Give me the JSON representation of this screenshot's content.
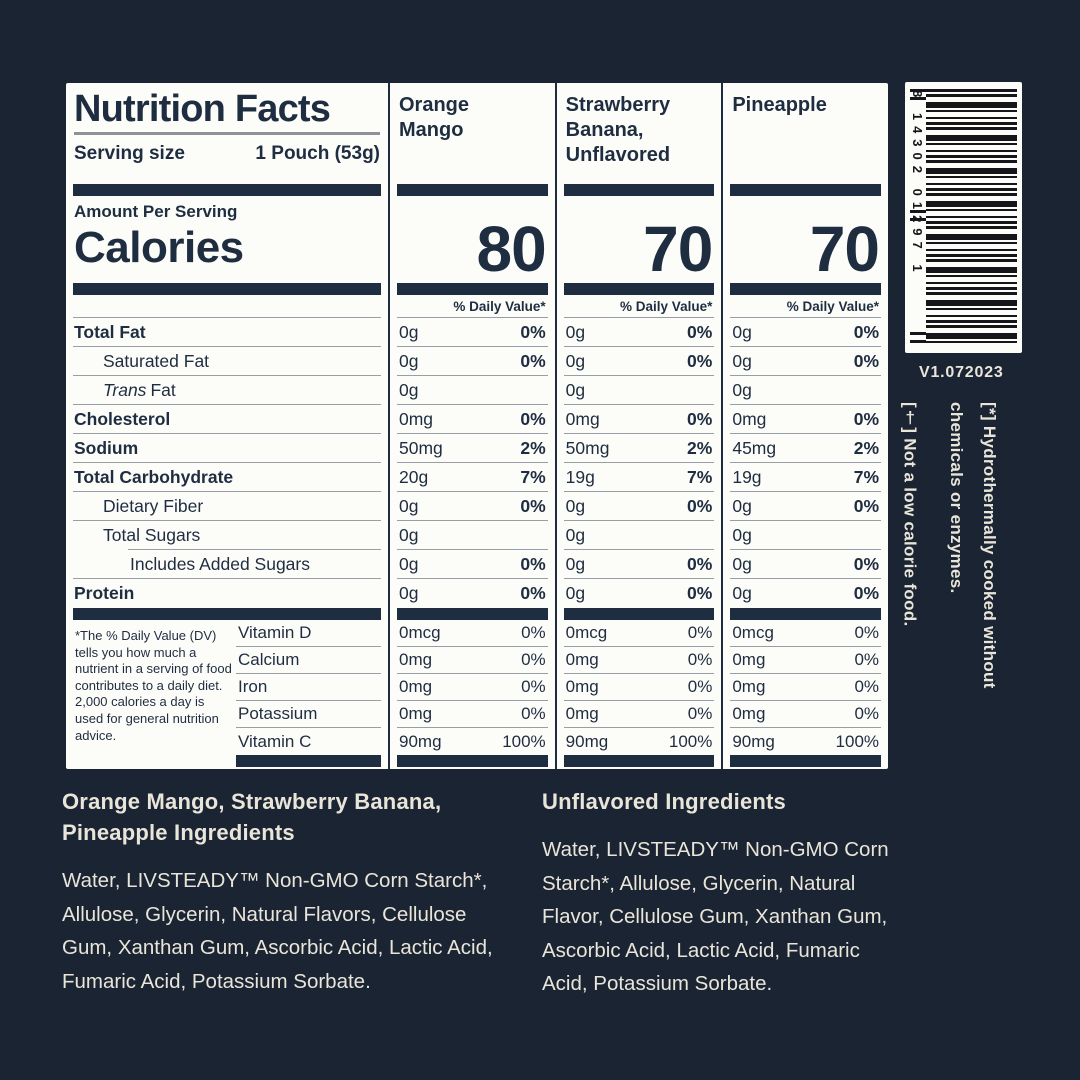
{
  "panel": {
    "title": "Nutrition Facts",
    "serving_size_label": "Serving size",
    "serving_size_value": "1 Pouch (53g)",
    "amount_per_serving": "Amount Per Serving",
    "calories_word": "Calories",
    "daily_value_header": "% Daily Value*",
    "columns": [
      {
        "name": "Orange Mango",
        "calories": "80"
      },
      {
        "name": "Strawberry Banana, Unflavored",
        "calories": "70"
      },
      {
        "name": "Pineapple",
        "calories": "70"
      }
    ],
    "nutrients": [
      {
        "label": "Total Fat",
        "values": [
          "0g",
          "0g",
          "0g"
        ],
        "dv": [
          "0%",
          "0%",
          "0%"
        ]
      },
      {
        "label": "Saturated Fat",
        "values": [
          "0g",
          "0g",
          "0g"
        ],
        "dv": [
          "0%",
          "0%",
          "0%"
        ]
      },
      {
        "label_italic": "Trans",
        "label": "Fat",
        "values": [
          "0g",
          "0g",
          "0g"
        ],
        "dv": [
          "",
          "",
          ""
        ]
      },
      {
        "label": "Cholesterol",
        "values": [
          "0mg",
          "0mg",
          "0mg"
        ],
        "dv": [
          "0%",
          "0%",
          "0%"
        ]
      },
      {
        "label": "Sodium",
        "values": [
          "50mg",
          "50mg",
          "45mg"
        ],
        "dv": [
          "2%",
          "2%",
          "2%"
        ]
      },
      {
        "label": "Total Carbohydrate",
        "values": [
          "20g",
          "19g",
          "19g"
        ],
        "dv": [
          "7%",
          "7%",
          "7%"
        ]
      },
      {
        "label": "Dietary Fiber",
        "values": [
          "0g",
          "0g",
          "0g"
        ],
        "dv": [
          "0%",
          "0%",
          "0%"
        ]
      },
      {
        "label": "Total Sugars",
        "values": [
          "0g",
          "0g",
          "0g"
        ],
        "dv": [
          "",
          "",
          ""
        ]
      },
      {
        "label": "Includes Added Sugars",
        "values": [
          "0g",
          "0g",
          "0g"
        ],
        "dv": [
          "0%",
          "0%",
          "0%"
        ]
      },
      {
        "label": "Protein",
        "values": [
          "0g",
          "0g",
          "0g"
        ],
        "dv": [
          "0%",
          "0%",
          "0%"
        ]
      }
    ],
    "vitamins": [
      {
        "label": "Vitamin D",
        "values": [
          "0mcg",
          "0mcg",
          "0mcg"
        ],
        "dv": [
          "0%",
          "0%",
          "0%"
        ]
      },
      {
        "label": "Calcium",
        "values": [
          "0mg",
          "0mg",
          "0mg"
        ],
        "dv": [
          "0%",
          "0%",
          "0%"
        ]
      },
      {
        "label": "Iron",
        "values": [
          "0mg",
          "0mg",
          "0mg"
        ],
        "dv": [
          "0%",
          "0%",
          "0%"
        ]
      },
      {
        "label": "Potassium",
        "values": [
          "0mg",
          "0mg",
          "0mg"
        ],
        "dv": [
          "0%",
          "0%",
          "0%"
        ]
      },
      {
        "label": "Vitamin C",
        "values": [
          "90mg",
          "90mg",
          "90mg"
        ],
        "dv": [
          "100%",
          "100%",
          "100%"
        ]
      }
    ],
    "footnote": "*The % Daily Value (DV) tells you how much a nutrient in a serving of food contributes to a daily diet. 2,000 calories a day is used for general nutrition advice."
  },
  "barcode": {
    "digits": "8 14302 01297 1",
    "version": "V1.072023"
  },
  "side_notes": {
    "note1": "[*] Hydrothermally cooked without chemicals or enzymes.",
    "note2": "[†] Not a low calorie food."
  },
  "ingredients": {
    "left": {
      "heading": "Orange Mango, Strawberry Banana, Pineapple Ingredients",
      "body": "Water, LIVSTEADY™ Non-GMO Corn Starch*, Allulose, Glycerin, Natural Flavors, Cellulose Gum, Xanthan Gum, Ascorbic Acid, Lactic Acid, Fumaric Acid, Potassium Sorbate."
    },
    "right": {
      "heading": "Unflavored Ingredients",
      "body": "Water, LIVSTEADY™ Non-GMO Corn Starch*, Allulose, Glycerin, Natural Flavor, Cellulose Gum, Xanthan Gum, Ascorbic Acid, Lactic Acid, Fumaric Acid, Potassium Sorbate."
    }
  },
  "colors": {
    "background": "#1A2433",
    "ink": "#1F2D40",
    "cream": "#E9E5D9"
  }
}
